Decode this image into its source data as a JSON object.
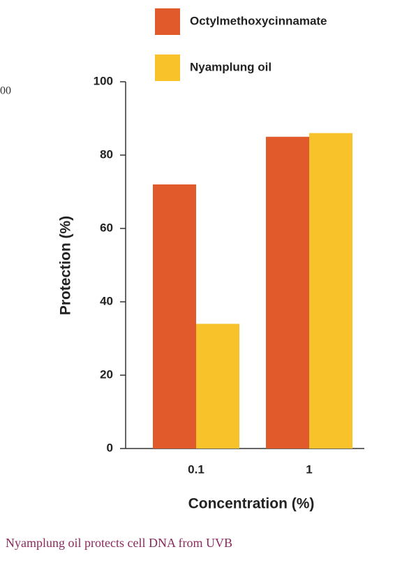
{
  "chart_data": {
    "type": "bar",
    "categories": [
      "0.1",
      "1"
    ],
    "series": [
      {
        "name": "Octylmethoxycinnamate",
        "color": "#e05a2b",
        "values": [
          72,
          85
        ]
      },
      {
        "name": "Nyamplung oil",
        "color": "#f8c22a",
        "values": [
          34,
          86
        ]
      }
    ],
    "ylim": [
      0,
      100
    ],
    "yticks": [
      0,
      20,
      40,
      60,
      80,
      100
    ],
    "y_label": "Protection (%)",
    "x_label": "Concentration (%)"
  },
  "caption": "Nyamplung oil protects cell DNA from UVB",
  "fragment": "00"
}
